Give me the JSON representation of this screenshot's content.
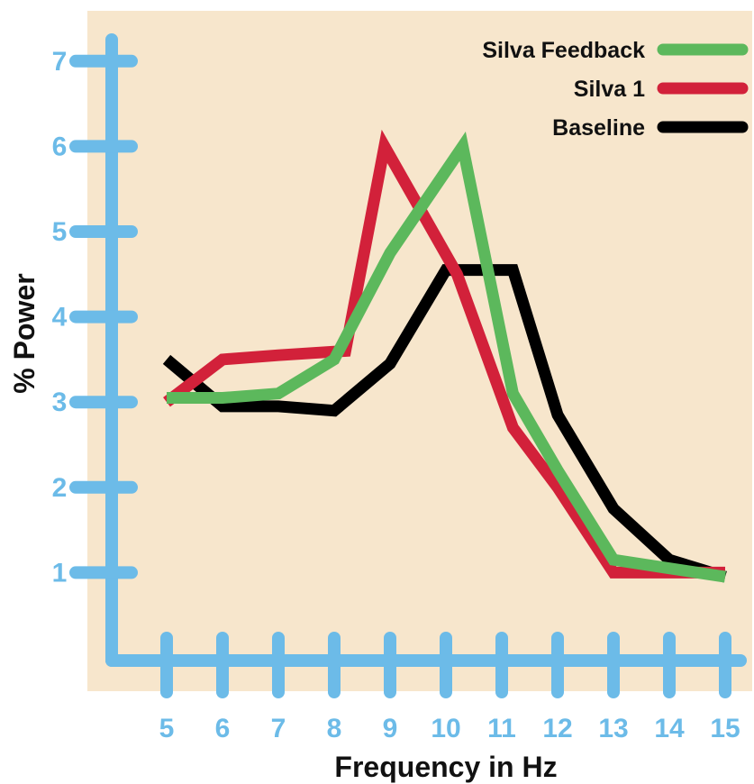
{
  "chart_data": {
    "type": "line",
    "xlabel": "Frequency in Hz",
    "ylabel": "% Power",
    "x": [
      5,
      6,
      7,
      8,
      9,
      10,
      11,
      12,
      13,
      14,
      15
    ],
    "xlim": [
      4,
      15
    ],
    "ylim": [
      0,
      7.2
    ],
    "yticks": [
      1,
      2,
      3,
      4,
      5,
      6,
      7
    ],
    "grid": false,
    "legend_position": "top-right",
    "series": [
      {
        "name": "Silva Feedback",
        "color": "#5cb85c",
        "points": [
          [
            5,
            3.05
          ],
          [
            6,
            3.05
          ],
          [
            7,
            3.1
          ],
          [
            8,
            3.5
          ],
          [
            9,
            4.75
          ],
          [
            10.3,
            6.0
          ],
          [
            11.2,
            3.1
          ],
          [
            12,
            2.2
          ],
          [
            13,
            1.15
          ],
          [
            14,
            1.05
          ],
          [
            15,
            0.95
          ]
        ]
      },
      {
        "name": "Silva 1",
        "color": "#d2213a",
        "points": [
          [
            5,
            3.0
          ],
          [
            6,
            3.5
          ],
          [
            7,
            3.55
          ],
          [
            8.2,
            3.6
          ],
          [
            8.9,
            6.0
          ],
          [
            10.2,
            4.5
          ],
          [
            11.2,
            2.7
          ],
          [
            12,
            2.0
          ],
          [
            13,
            1.0
          ],
          [
            14,
            1.0
          ],
          [
            15,
            1.0
          ]
        ]
      },
      {
        "name": "Baseline",
        "color": "#000000",
        "points": [
          [
            5,
            3.5
          ],
          [
            6,
            2.95
          ],
          [
            7,
            2.95
          ],
          [
            8,
            2.9
          ],
          [
            9,
            3.45
          ],
          [
            10,
            4.55
          ],
          [
            11.2,
            4.55
          ],
          [
            12,
            2.85
          ],
          [
            13,
            1.75
          ],
          [
            14,
            1.15
          ],
          [
            15,
            0.95
          ]
        ]
      }
    ]
  },
  "colors": {
    "background": "#f7e6cc",
    "axis": "#6cbbe8",
    "tick_label": "#6cbbe8"
  }
}
